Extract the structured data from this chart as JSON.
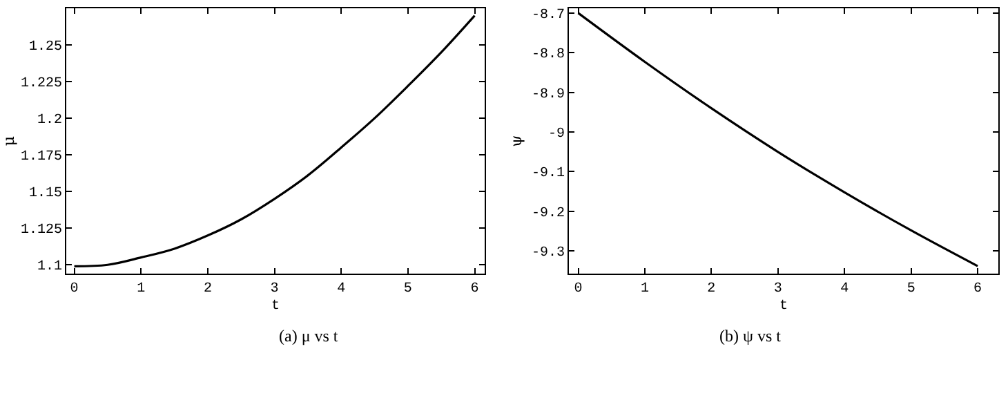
{
  "chart_data": [
    {
      "type": "line",
      "xlabel": "t",
      "ylabel": "μ",
      "x": [
        0,
        0.5,
        1,
        1.5,
        2,
        2.5,
        3,
        3.5,
        4,
        4.5,
        5,
        5.5,
        6
      ],
      "series": [
        {
          "color": "#000000",
          "values": [
            1.099,
            1.1,
            1.105,
            1.111,
            1.12,
            1.131,
            1.145,
            1.161,
            1.18,
            1.2,
            1.222,
            1.245,
            1.27
          ]
        }
      ],
      "xlim": [
        -0.12,
        6.15
      ],
      "ylim": [
        1.094,
        1.275
      ],
      "xticks": [
        0,
        1,
        2,
        3,
        4,
        5,
        6
      ],
      "yticks": [
        1.1,
        1.125,
        1.15,
        1.175,
        1.2,
        1.225,
        1.25
      ],
      "marker": "none",
      "line_style": "solid",
      "annotations": [
        "(a) μ vs t"
      ]
    },
    {
      "type": "line",
      "xlabel": "t",
      "ylabel": "ψ",
      "x": [
        0,
        1,
        2,
        3,
        4,
        5,
        6
      ],
      "series": [
        {
          "color": "#000000",
          "values": [
            -8.7,
            -8.823,
            -8.94,
            -9.05,
            -9.152,
            -9.248,
            -9.338
          ]
        }
      ],
      "xlim": [
        -0.14,
        6.31
      ],
      "ylim": [
        -9.357,
        -8.688
      ],
      "xticks": [
        0,
        1,
        2,
        3,
        4,
        5,
        6
      ],
      "yticks": [
        -9.3,
        -9.2,
        -9.1,
        -9,
        -8.9,
        -8.8,
        -8.7
      ],
      "marker": "none",
      "line_style": "solid",
      "annotations": [
        "(b) ψ vs t"
      ]
    }
  ]
}
